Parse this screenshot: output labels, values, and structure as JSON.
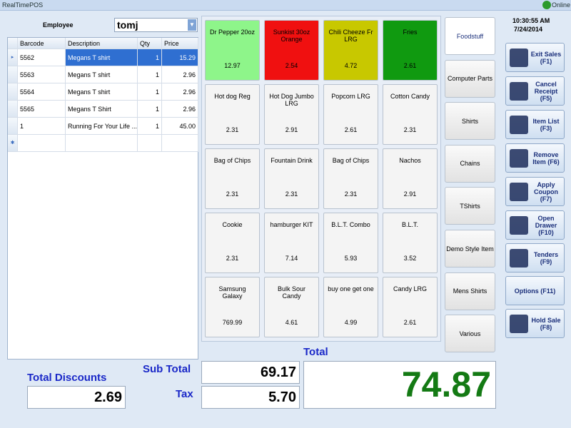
{
  "window": {
    "title": "RealTimePOS",
    "status": "Online"
  },
  "employee": {
    "label": "Employee",
    "value": "tomj"
  },
  "table": {
    "columns": [
      "Barcode",
      "Description",
      "Qty",
      "Price"
    ],
    "rows": [
      [
        "5562",
        "Megans T shirt",
        "1",
        "15.29"
      ],
      [
        "5563",
        "Megans T shirt",
        "1",
        "2.96"
      ],
      [
        "5564",
        "Megans T shirt",
        "1",
        "2.96"
      ],
      [
        "5565",
        "Megans T Shirt",
        "1",
        "2.96"
      ],
      [
        "1",
        "Running For Your Life ...",
        "1",
        "45.00"
      ]
    ]
  },
  "products": [
    {
      "name": "Dr Pepper 20oz",
      "price": "12.97",
      "color": "#8ef58a"
    },
    {
      "name": "Sunkist 30oz Orange",
      "price": "2.54",
      "color": "#f01010"
    },
    {
      "name": "Chili Cheeze Fr LRG",
      "price": "4.72",
      "color": "#c8c800"
    },
    {
      "name": "Fries",
      "price": "2.61",
      "color": "#109a10"
    },
    {
      "name": "Hot dog Reg",
      "price": "2.31"
    },
    {
      "name": "Hot Dog Jumbo LRG",
      "price": "2.91"
    },
    {
      "name": "Popcorn LRG",
      "price": "2.61"
    },
    {
      "name": "Cotton Candy",
      "price": "2.31"
    },
    {
      "name": "Bag of Chips",
      "price": "2.31"
    },
    {
      "name": "Fountain Drink",
      "price": "2.31"
    },
    {
      "name": "Bag of Chips",
      "price": "2.31"
    },
    {
      "name": "Nachos",
      "price": "2.91"
    },
    {
      "name": "Cookie",
      "price": "2.31"
    },
    {
      "name": "hamburger KIT",
      "price": "7.14"
    },
    {
      "name": "B.L.T. Combo",
      "price": "5.93"
    },
    {
      "name": "B.L.T.",
      "price": "3.52"
    },
    {
      "name": "Samsung Galaxy",
      "price": "769.99"
    },
    {
      "name": "Bulk Sour Candy",
      "price": "4.61"
    },
    {
      "name": "buy one get one",
      "price": "4.99"
    },
    {
      "name": "Candy LRG",
      "price": "2.61"
    }
  ],
  "categories": [
    "Foodstuff",
    "Computer Parts",
    "Shirts",
    "Chains",
    "TShirts",
    "Demo Style Item",
    "Mens Shirts",
    "Various"
  ],
  "clock": {
    "time": "10:30:55 AM",
    "date": "7/24/2014"
  },
  "actions": [
    "Exit Sales (F1)",
    "Cancel Receipt (F5)",
    "Item List (F3)",
    "Remove Item (F6)",
    "Apply Coupon (F7)",
    "Open Drawer (F10)",
    "Tenders (F9)",
    "Options (F11)",
    "Hold Sale (F8)"
  ],
  "totals": {
    "discounts_label": "Total Discounts",
    "discounts": "2.69",
    "subtotal_label": "Sub Total",
    "subtotal": "69.17",
    "tax_label": "Tax",
    "tax": "5.70",
    "total_label": "Total",
    "total": "74.87"
  }
}
